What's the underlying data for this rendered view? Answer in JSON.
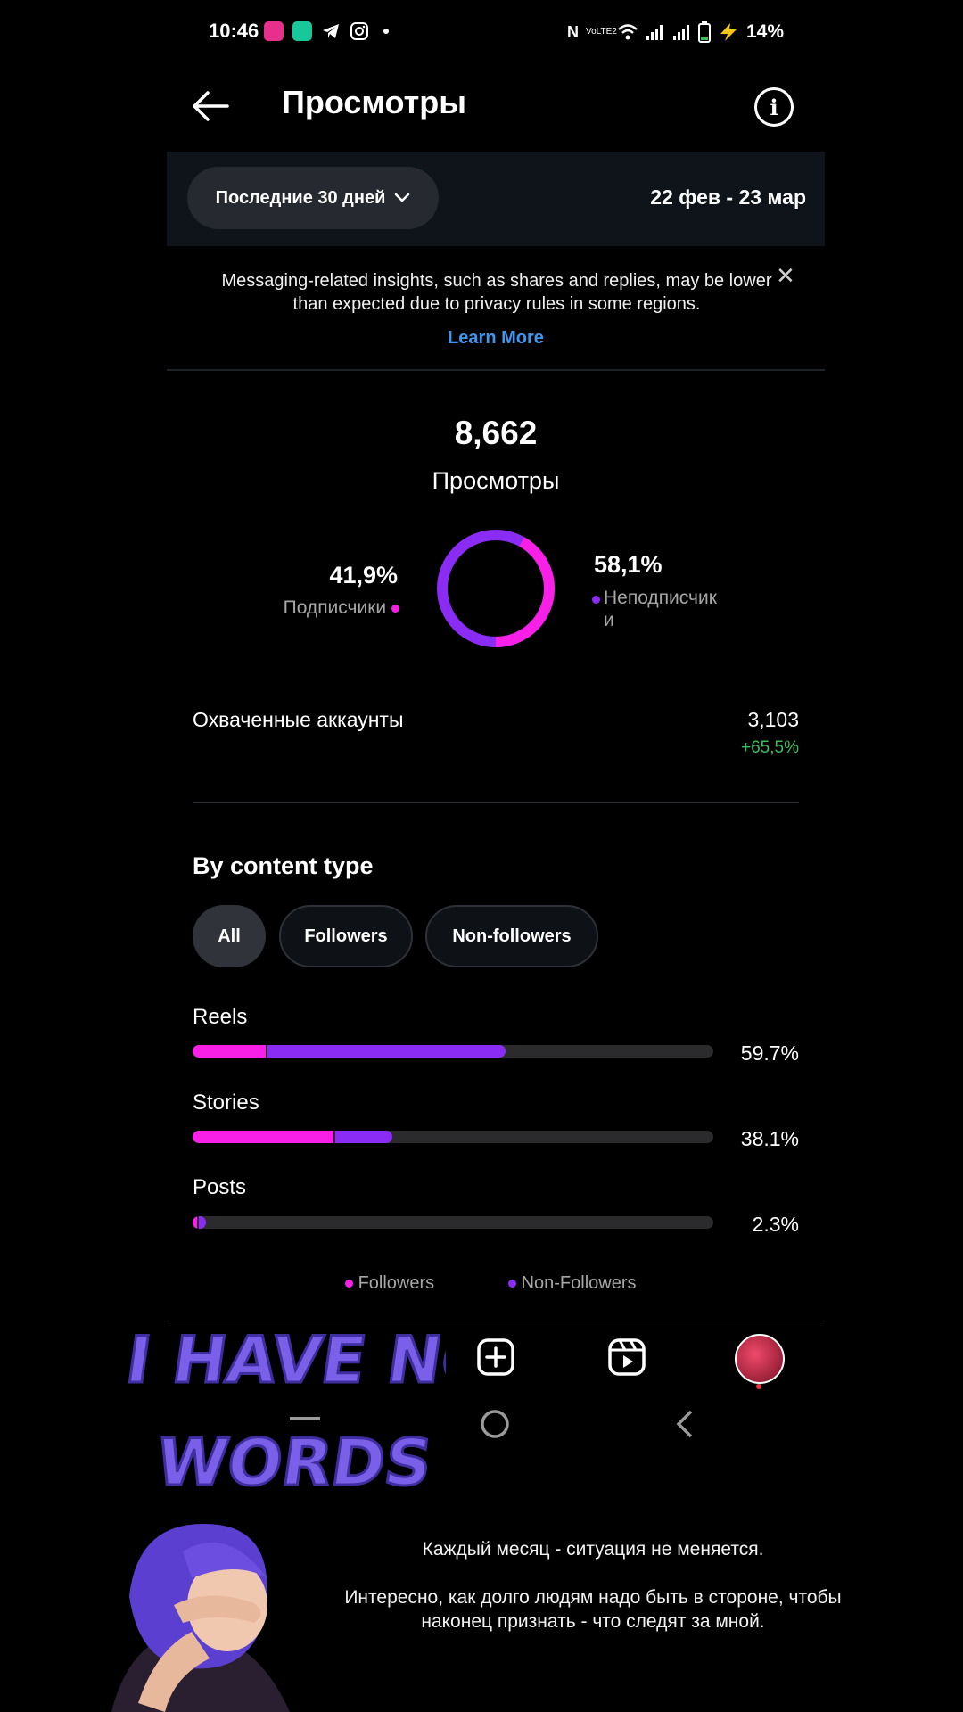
{
  "status_bar": {
    "time": "10:46",
    "battery": "14%",
    "network_label": "VoLTE2"
  },
  "header": {
    "title": "Просмотры",
    "back_icon": "arrow-left-icon",
    "info_icon": "info-icon"
  },
  "date_filter": {
    "range_label": "Последние 30 дней",
    "date_range": "22 фев - 23 мар"
  },
  "notice": {
    "text": "Messaging-related insights, such as shares and replies, may be lower than expected due to privacy rules in some regions.",
    "link": "Learn More"
  },
  "overview": {
    "total_value": "8,662",
    "total_label": "Просмотры",
    "followers_pct": "41,9%",
    "followers_label": "Подписчики",
    "nonfollowers_pct": "58,1%",
    "nonfollowers_label": "Неподписчики",
    "followers_fraction": 0.419,
    "colors": {
      "followers": "#f81fe6",
      "nonfollowers": "#8b2cf5"
    }
  },
  "reach": {
    "label": "Охваченные аккаунты",
    "value": "3,103",
    "change": "+65,5%"
  },
  "content_type": {
    "title": "By content type",
    "chips": [
      "All",
      "Followers",
      "Non-followers"
    ],
    "rows": [
      {
        "label": "Reels",
        "pct": "59.7%",
        "followers_share": 0.14,
        "nonfollowers_share": 0.457
      },
      {
        "label": "Stories",
        "pct": "38.1%",
        "followers_share": 0.27,
        "nonfollowers_share": 0.111
      },
      {
        "label": "Posts",
        "pct": "2.3%",
        "followers_share": 0.008,
        "nonfollowers_share": 0.015
      }
    ],
    "legend": [
      "Followers",
      "Non-Followers"
    ]
  },
  "bottom_nav": [
    "home-icon",
    "search-icon",
    "add-post-icon",
    "reels-icon",
    "profile-avatar"
  ],
  "overlay": {
    "sticker_line1": "I HAVE NO",
    "sticker_line2": "WORDS",
    "caption_line1": "Каждый месяц - ситуация не меняется.",
    "caption_line2": "Интересно, как долго людям надо быть в стороне, чтобы наконец признать - что следят за мной."
  }
}
